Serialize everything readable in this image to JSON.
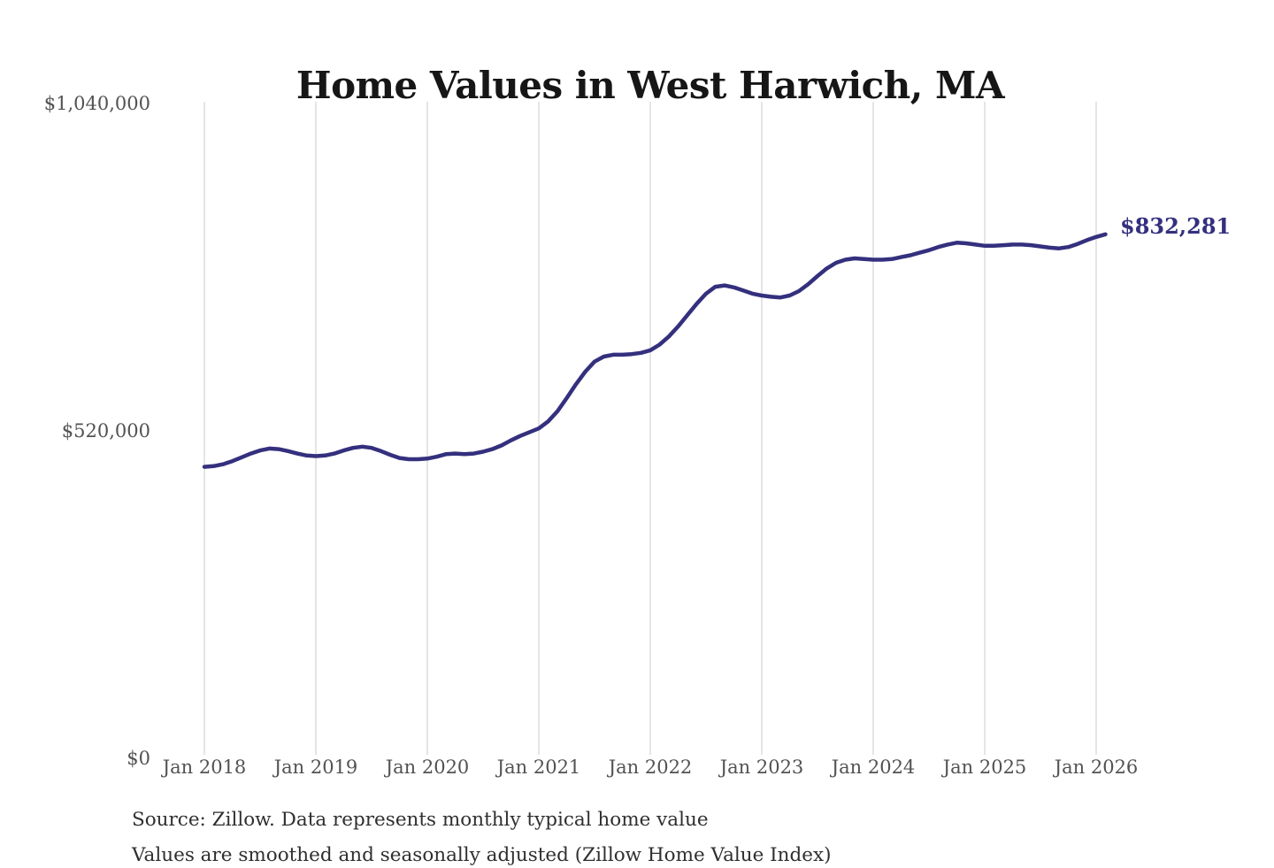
{
  "title": "Home Values in West Harwich, MA",
  "annotation": {
    "final_value_label": "$832,281"
  },
  "y_axis": {
    "labels": [
      "$1,040,000",
      "$520,000",
      "$0"
    ],
    "values": [
      1040000,
      520000,
      0
    ]
  },
  "x_axis": {
    "labels": [
      "Jan 2018",
      "Jan 2019",
      "Jan 2020",
      "Jan 2021",
      "Jan 2022",
      "Jan 2023",
      "Jan 2024",
      "Jan 2025",
      "Jan 2026"
    ]
  },
  "footer": {
    "source_line": "Source: Zillow. Data represents monthly typical home value",
    "source_line2_clipped": "Values are smoothed and seasonally adjusted (Zillow Home Value Index)"
  },
  "colors": {
    "line": "#34307e",
    "end_label": "#34307e",
    "grid": "#cbcbcb",
    "axis_text": "#525252",
    "title_text": "#161616",
    "source_text": "#2f2f2f",
    "background": "#ffffff"
  },
  "chart_data": {
    "type": "line",
    "title": "Home Values in West Harwich, MA",
    "series_name": "Typical home value (USD)",
    "frequency": "monthly",
    "x_start": "Jan 2018",
    "x_end": "Feb 2026",
    "x_tick_labels": [
      "Jan 2018",
      "Jan 2019",
      "Jan 2020",
      "Jan 2021",
      "Jan 2022",
      "Jan 2023",
      "Jan 2024",
      "Jan 2025",
      "Jan 2026"
    ],
    "ylim": [
      0,
      1040000
    ],
    "yticks": [
      0,
      520000,
      1040000
    ],
    "grid": "vertical-only",
    "legend": "none",
    "final_value": 832281,
    "values": [
      463000,
      464000,
      467000,
      472000,
      478000,
      484000,
      489000,
      492000,
      491000,
      488000,
      484000,
      481000,
      480000,
      481000,
      484000,
      489000,
      493000,
      495000,
      493000,
      488000,
      482000,
      477000,
      475000,
      475000,
      476000,
      479000,
      483000,
      484000,
      483000,
      484000,
      487000,
      491000,
      497000,
      505000,
      512000,
      518000,
      524000,
      535000,
      551000,
      572000,
      594000,
      614000,
      630000,
      638000,
      641000,
      641000,
      642000,
      644000,
      648000,
      657000,
      670000,
      686000,
      704000,
      722000,
      738000,
      749000,
      751000,
      748000,
      743000,
      738000,
      735000,
      733000,
      732000,
      735000,
      742000,
      753000,
      766000,
      778000,
      787000,
      792000,
      794000,
      793000,
      792000,
      792000,
      793000,
      796000,
      799000,
      803000,
      807000,
      812000,
      816000,
      819000,
      818000,
      816000,
      814000,
      814000,
      815000,
      816000,
      816000,
      815000,
      813000,
      811000,
      810000,
      812000,
      817000,
      823000,
      828000,
      832281
    ]
  }
}
